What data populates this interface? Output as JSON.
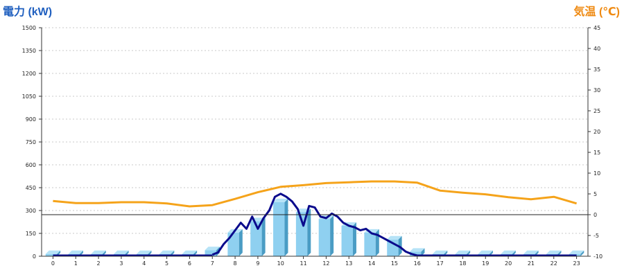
{
  "chart_data": {
    "type": "bar+line",
    "left_axis_title": "電力 (kW)",
    "right_axis_title": "気温 (℃)",
    "left_title_color": "#1f5fbf",
    "right_title_color": "#ef8a12",
    "bar_color": "#8fd0f0",
    "power_line_color": "#0a0a8c",
    "temp_line_color": "#f5a31a",
    "grid": "horizontal-dashed",
    "y_left": {
      "min": 0,
      "max": 1500,
      "ticks": [
        "0",
        "150",
        "300",
        "450",
        "600",
        "750",
        "900",
        "1050",
        "1200",
        "1350",
        "1500"
      ]
    },
    "y_right": {
      "min": -10,
      "max": 45,
      "ticks": [
        "-10",
        "-5",
        "0",
        "5",
        "10",
        "15",
        "20",
        "25",
        "30",
        "35",
        "40",
        "45"
      ]
    },
    "categories": [
      "0",
      "1",
      "2",
      "3",
      "4",
      "5",
      "6",
      "7",
      "8",
      "9",
      "10",
      "11",
      "12",
      "13",
      "14",
      "15",
      "16",
      "17",
      "18",
      "19",
      "20",
      "21",
      "22",
      "23"
    ],
    "series": [
      {
        "kind": "bar",
        "axis": "left",
        "values": [
          15,
          15,
          15,
          15,
          15,
          15,
          15,
          40,
          155,
          230,
          355,
          290,
          245,
          200,
          155,
          110,
          30,
          15,
          15,
          15,
          15,
          15,
          15,
          15
        ]
      },
      {
        "kind": "line",
        "axis": "left",
        "x": [
          7,
          7.25,
          7.5,
          7.75,
          8,
          8.25,
          8.5,
          8.75,
          9,
          9.25,
          9.5,
          9.75,
          10,
          10.25,
          10.5,
          10.75,
          11,
          11.25,
          11.5,
          11.75,
          12,
          12.25,
          12.5,
          12.75,
          13,
          13.25,
          13.5,
          13.75,
          14,
          14.25,
          14.5,
          14.75,
          15,
          15.25,
          15.5,
          15.75,
          16
        ],
        "values": [
          10,
          25,
          80,
          120,
          170,
          220,
          180,
          260,
          180,
          250,
          300,
          390,
          410,
          390,
          360,
          310,
          200,
          330,
          320,
          260,
          250,
          280,
          260,
          220,
          200,
          190,
          170,
          180,
          150,
          140,
          120,
          100,
          80,
          60,
          30,
          15,
          5
        ]
      },
      {
        "kind": "line",
        "axis": "right",
        "values": [
          3.3,
          2.8,
          2.8,
          3.0,
          3.0,
          2.7,
          2.0,
          2.3,
          3.8,
          5.4,
          6.7,
          7.1,
          7.6,
          7.8,
          8.0,
          8.0,
          7.7,
          5.8,
          5.3,
          4.9,
          4.2,
          3.7,
          4.3,
          2.7
        ]
      }
    ]
  }
}
